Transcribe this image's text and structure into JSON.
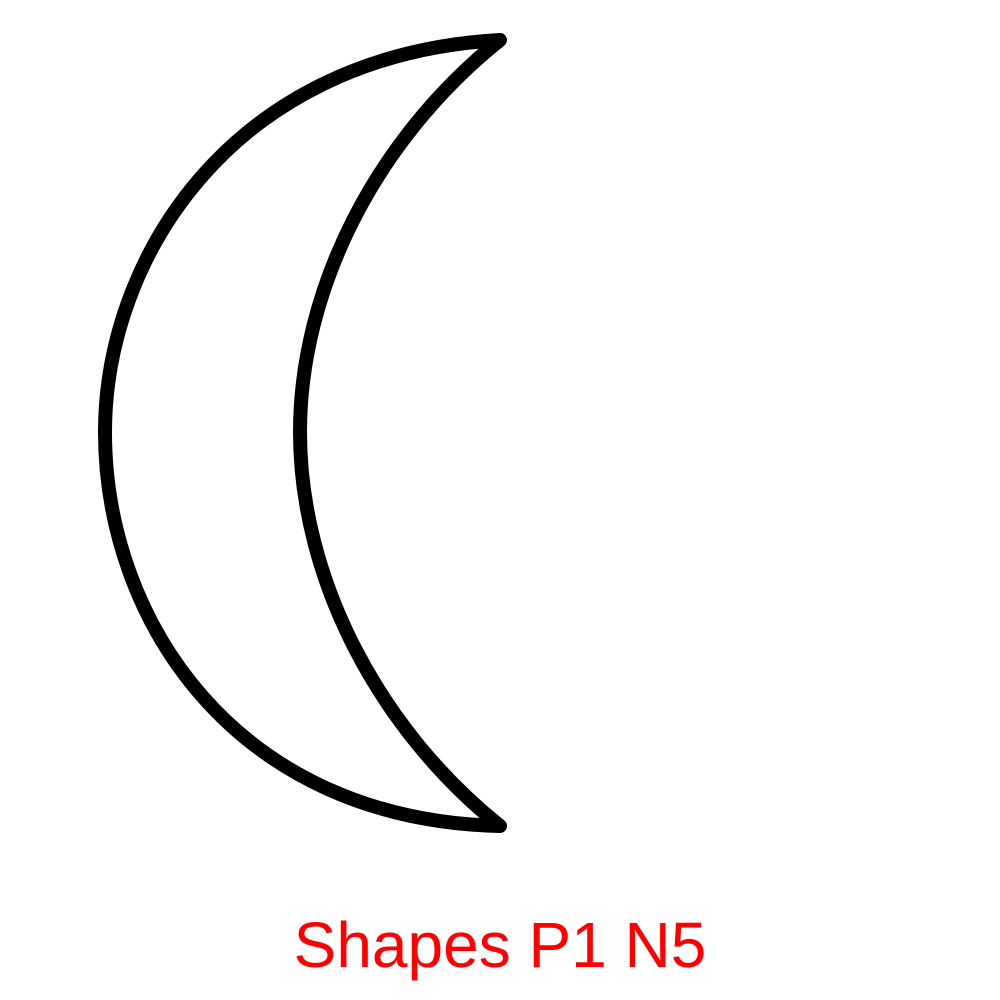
{
  "figure": {
    "shape": "crescent-moon-outline",
    "stroke_color": "#000000",
    "fill_color": "#ffffff"
  },
  "caption": {
    "text": "Shapes P1 N5",
    "color": "#ff0000"
  }
}
